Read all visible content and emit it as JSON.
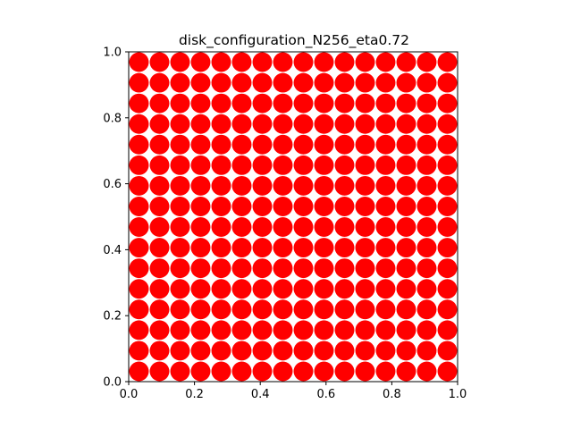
{
  "chart_data": {
    "type": "scatter",
    "title": "disk_configuration_N256_eta0.72",
    "xlabel": "",
    "ylabel": "",
    "xlim": [
      0.0,
      1.0
    ],
    "ylim": [
      0.0,
      1.0
    ],
    "xticks": [
      "0.0",
      "0.2",
      "0.4",
      "0.6",
      "0.8",
      "1.0"
    ],
    "yticks": [
      "0.0",
      "0.2",
      "0.4",
      "0.6",
      "0.8",
      "1.0"
    ],
    "grid": false,
    "legend": "none",
    "disk_color": "#ff0000",
    "disk_radius": 0.0298,
    "grid_columns": 16,
    "grid_rows": 16,
    "x_centers": [
      0.03125,
      0.09375,
      0.15625,
      0.21875,
      0.28125,
      0.34375,
      0.40625,
      0.46875,
      0.53125,
      0.59375,
      0.65625,
      0.71875,
      0.78125,
      0.84375,
      0.90625,
      0.96875
    ],
    "y_centers": [
      0.03125,
      0.09375,
      0.15625,
      0.21875,
      0.28125,
      0.34375,
      0.40625,
      0.46875,
      0.53125,
      0.59375,
      0.65625,
      0.71875,
      0.78125,
      0.84375,
      0.90625,
      0.96875
    ]
  }
}
